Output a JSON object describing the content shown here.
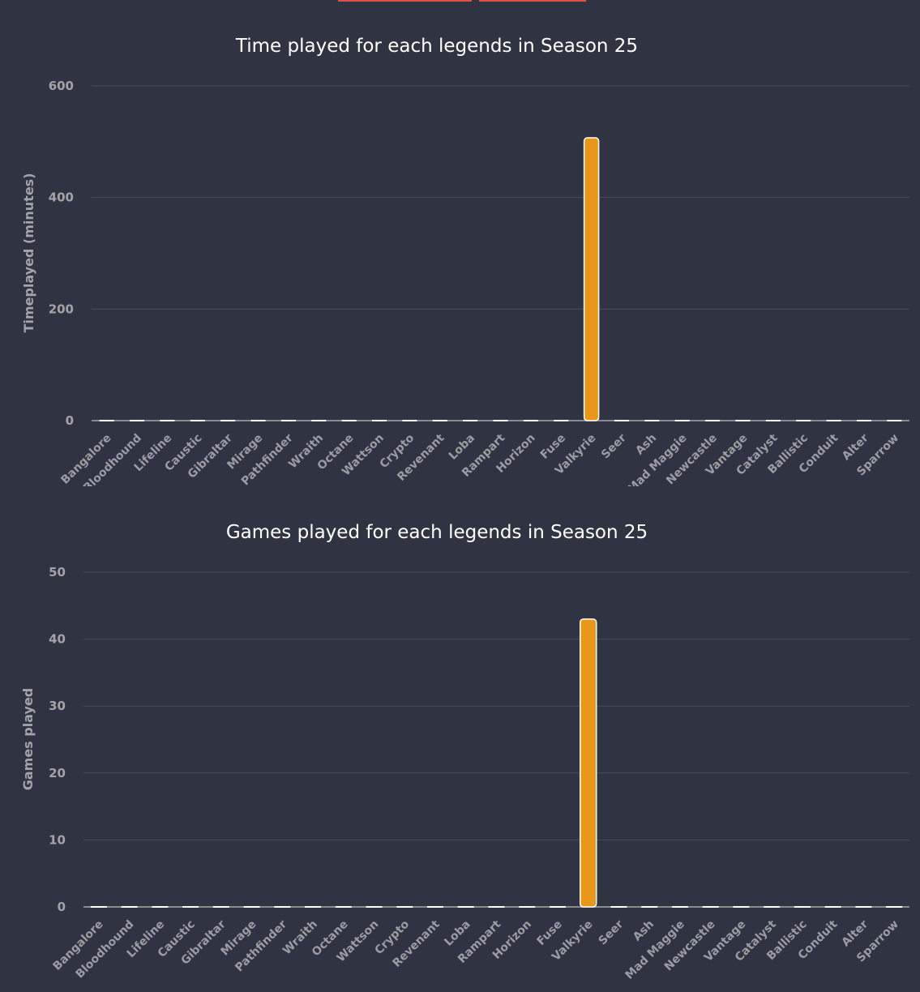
{
  "colors": {
    "background": "#303342",
    "bar": "#e8971a",
    "bar_outline": "#ffffff",
    "tab_accent": "#e0504a",
    "grid": "#4a4d5c"
  },
  "chart_data": [
    {
      "type": "bar",
      "title": "Time played for each legends in Season 25",
      "xlabel": "",
      "ylabel": "Timeplayed (minutes)",
      "ylim": [
        0,
        600
      ],
      "yticks": [
        "0",
        "200",
        "400",
        "600"
      ],
      "ytick_values": [
        0,
        200,
        400,
        600
      ],
      "grid": true,
      "categories": [
        "Bangalore",
        "Bloodhound",
        "Lifeline",
        "Caustic",
        "Gibraltar",
        "Mirage",
        "Pathfinder",
        "Wraith",
        "Octane",
        "Wattson",
        "Crypto",
        "Revenant",
        "Loba",
        "Rampart",
        "Horizon",
        "Fuse",
        "Valkyrie",
        "Seer",
        "Ash",
        "Mad Maggie",
        "Newcastle",
        "Vantage",
        "Catalyst",
        "Ballistic",
        "Conduit",
        "Alter",
        "Sparrow"
      ],
      "values": [
        0,
        0,
        0,
        0,
        0,
        0,
        0,
        0,
        0,
        0,
        0,
        0,
        0,
        0,
        0,
        0,
        507,
        0,
        0,
        0,
        0,
        0,
        0,
        0,
        0,
        0,
        0
      ]
    },
    {
      "type": "bar",
      "title": "Games played for each legends in Season 25",
      "xlabel": "",
      "ylabel": "Games played",
      "ylim": [
        0,
        50
      ],
      "yticks": [
        "0",
        "10",
        "20",
        "30",
        "40",
        "50"
      ],
      "ytick_values": [
        0,
        10,
        20,
        30,
        40,
        50
      ],
      "grid": true,
      "categories": [
        "Bangalore",
        "Bloodhound",
        "Lifeline",
        "Caustic",
        "Gibraltar",
        "Mirage",
        "Pathfinder",
        "Wraith",
        "Octane",
        "Wattson",
        "Crypto",
        "Revenant",
        "Loba",
        "Rampart",
        "Horizon",
        "Fuse",
        "Valkyrie",
        "Seer",
        "Ash",
        "Mad Maggie",
        "Newcastle",
        "Vantage",
        "Catalyst",
        "Ballistic",
        "Conduit",
        "Alter",
        "Sparrow"
      ],
      "values": [
        0,
        0,
        0,
        0,
        0,
        0,
        0,
        0,
        0,
        0,
        0,
        0,
        0,
        0,
        0,
        0,
        43,
        0,
        0,
        0,
        0,
        0,
        0,
        0,
        0,
        0,
        0
      ]
    }
  ]
}
